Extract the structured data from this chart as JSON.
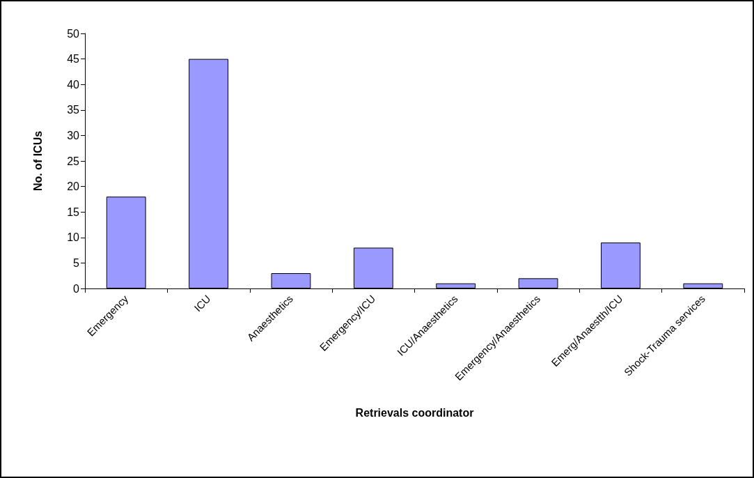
{
  "chart_data": {
    "type": "bar",
    "xlabel": "Retrievals coordinator",
    "ylabel": "No. of ICUs",
    "categories": [
      "Emergency",
      "ICU",
      "Anaesthetics",
      "Emergency/ICU",
      "ICU/Anaesthetics",
      "Emergency/Anaesthetics",
      "Emerg/Anaestth/ICU",
      "Shock-Trauma services"
    ],
    "values": [
      18,
      45,
      3,
      8,
      1,
      2,
      9,
      1
    ],
    "color": "#9999ff",
    "ylim": [
      0,
      50
    ],
    "yticks": [
      0,
      5,
      10,
      15,
      20,
      25,
      30,
      35,
      40,
      45,
      50
    ],
    "grid": false
  }
}
